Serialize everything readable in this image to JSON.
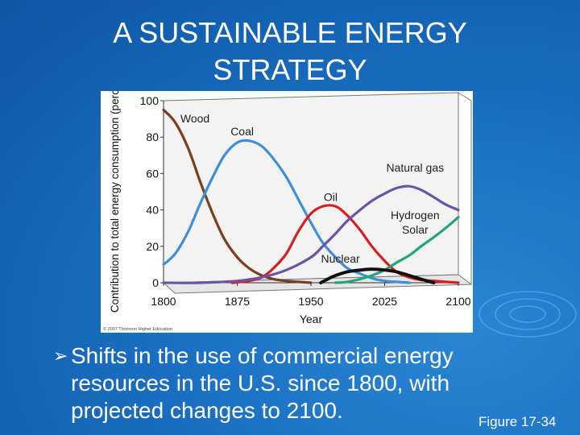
{
  "slide": {
    "title_line1": "A SUSTAINABLE ENERGY",
    "title_line2": "STRATEGY",
    "bullet_text": "Shifts in the use of commercial energy resources in the U.S. since 1800, with projected changes to 2100.",
    "figure_label": "Figure 17-34"
  },
  "chart_data": {
    "type": "line",
    "ylabel": "Contribution to total energy consumption (percent)",
    "xlabel": "Year",
    "xlim": [
      1800,
      2100
    ],
    "ylim": [
      0,
      100
    ],
    "x_ticks": [
      "1800",
      "1875",
      "1950",
      "2025",
      "2100"
    ],
    "y_ticks": [
      "0",
      "20",
      "40",
      "60",
      "80",
      "100"
    ],
    "copyright": "© 2007 Thomson Higher Education",
    "series": [
      {
        "name": "Wood",
        "color": "#7a3e1e",
        "x": [
          1800,
          1812,
          1825,
          1837,
          1850,
          1862,
          1875,
          1887,
          1900,
          1912,
          1925,
          1937,
          1950
        ],
        "y": [
          95,
          88,
          74,
          56,
          38,
          24,
          14,
          8,
          4,
          2,
          1,
          0.5,
          0
        ]
      },
      {
        "name": "Coal",
        "color": "#3f8fd6",
        "x": [
          1800,
          1812,
          1825,
          1837,
          1850,
          1862,
          1875,
          1887,
          1900,
          1912,
          1925,
          1937,
          1950,
          1962,
          1975,
          1987,
          2000,
          2012,
          2025,
          2037,
          2050
        ],
        "y": [
          10,
          16,
          28,
          43,
          58,
          70,
          77,
          78,
          75,
          68,
          58,
          46,
          33,
          22,
          14,
          8,
          5,
          2.5,
          1,
          0.5,
          0
        ]
      },
      {
        "name": "Oil",
        "color": "#d42020",
        "x": [
          1870,
          1887,
          1900,
          1912,
          1925,
          1937,
          1950,
          1962,
          1975,
          1987,
          2000,
          2012,
          2025,
          2037,
          2050,
          2062,
          2075,
          2087,
          2100
        ],
        "y": [
          0,
          1,
          3,
          8,
          16,
          28,
          38,
          42,
          42,
          37,
          29,
          20,
          12,
          6,
          3,
          1.5,
          1,
          0.5,
          0
        ]
      },
      {
        "name": "Natural gas",
        "color": "#6a54a8",
        "x": [
          1800,
          1837,
          1875,
          1900,
          1925,
          1950,
          1962,
          1975,
          1987,
          2000,
          2012,
          2025,
          2037,
          2050,
          2062,
          2075,
          2087,
          2100
        ],
        "y": [
          0,
          0,
          1,
          3,
          7,
          14,
          20,
          27,
          34,
          40,
          45,
          49,
          52,
          53,
          51,
          47,
          43,
          40
        ]
      },
      {
        "name": "Hydrogen Solar",
        "color": "#21a67a",
        "x": [
          1975,
          1987,
          2000,
          2012,
          2025,
          2037,
          2050,
          2062,
          2075,
          2087,
          2100
        ],
        "y": [
          0,
          0.5,
          2,
          4,
          7,
          11,
          15,
          20,
          25,
          30,
          36
        ]
      },
      {
        "name": "Nuclear",
        "color": "#111111",
        "x": [
          1960,
          1967,
          1975,
          1987,
          2000,
          2012,
          2025,
          2037,
          2050,
          2062,
          2075
        ],
        "y": [
          0,
          2,
          4,
          6,
          7,
          7.5,
          7,
          6,
          4,
          2,
          0
        ]
      }
    ],
    "labels": [
      {
        "text": "Wood",
        "x": 1832,
        "y": 88
      },
      {
        "text": "Coal",
        "x": 1880,
        "y": 81
      },
      {
        "text": "Natural gas",
        "x": 2056,
        "y": 61
      },
      {
        "text": "Oil",
        "x": 1970,
        "y": 45
      },
      {
        "text": "Hydrogen",
        "x": 2056,
        "y": 35
      },
      {
        "text": "Solar",
        "x": 2056,
        "y": 27
      },
      {
        "text": "Nuclear",
        "x": 1980,
        "y": 11
      }
    ]
  }
}
